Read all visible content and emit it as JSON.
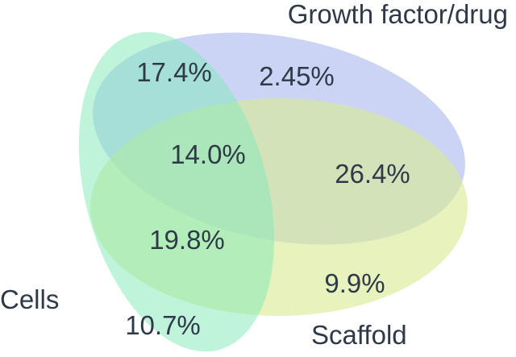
{
  "sets": {
    "growth": {
      "label": "Growth factor/drug",
      "color": "#b9c4f3"
    },
    "scaffold": {
      "label": "Scaffold",
      "color": "#d9ea95"
    },
    "cells": {
      "label": "Cells",
      "color": "#7fe9b8"
    }
  },
  "regions": {
    "cells_growth": "17.4%",
    "growth_only": "2.45%",
    "all_three": "14.0%",
    "growth_scaffold": "26.4%",
    "cells_scaffold": "19.8%",
    "scaffold_only": "9.9%",
    "cells_only": "10.7%"
  }
}
